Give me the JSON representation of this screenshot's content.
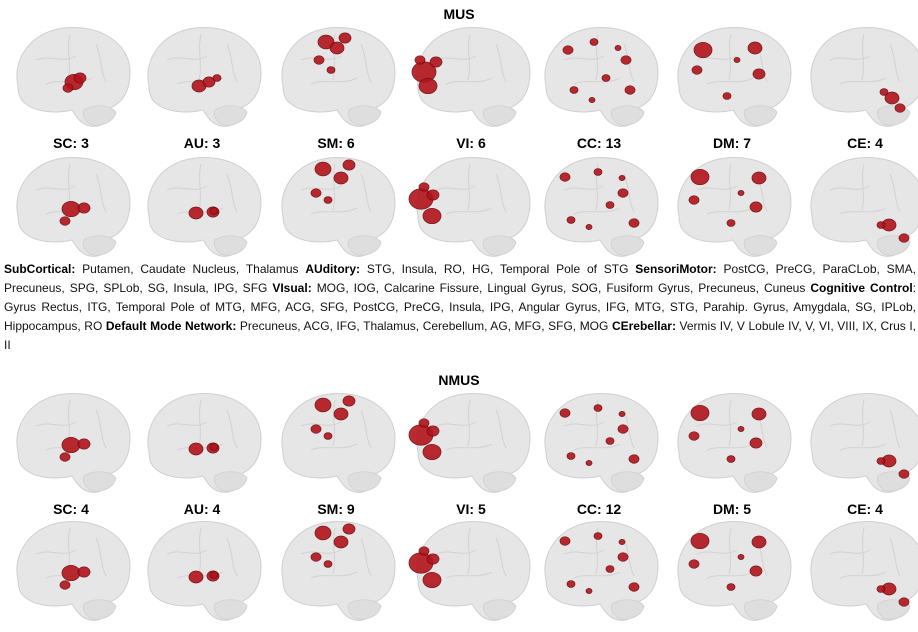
{
  "figure": {
    "sections": [
      {
        "title": "MUS",
        "labels": [
          "SC: 3",
          "AU: 3",
          "SM: 6",
          "VI: 6",
          "CC: 13",
          "DM: 7",
          "CE: 4"
        ]
      },
      {
        "title": "NMUS",
        "labels": [
          "SC: 4",
          "AU: 4",
          "SM: 9",
          "VI: 5",
          "CC: 12",
          "DM: 5",
          "CE: 4"
        ]
      }
    ],
    "caption": [
      {
        "term": "SubCortical:",
        "text": " Putamen, Caudate Nucleus, Thalamus "
      },
      {
        "term": "AUditory:",
        "text": " STG, Insula, RO, HG, Temporal Pole of STG "
      },
      {
        "term": "SensoriMotor:",
        "text": " PostCG, PreCG, ParaCLob, SMA, Precuneus, SPG, SPLob, SG, Insula, IPG, SFG "
      },
      {
        "term": "VIsual:",
        "text": " MOG, IOG, Calcarine Fissure, Lingual Gyrus, SOG, Fusiform Gyrus, Precuneus, Cuneus "
      },
      {
        "term": "Cognitive Control",
        "text": ": Gyrus Rectus, ITG, Temporal Pole of MTG, MFG, ACG, SFG, PostCG, PreCG, Insula, IPG, Angular Gyrus, IFG, MTG, STG, Parahip. Gyrus, Amygdala, SG, IPLob, Hippocampus, RO "
      },
      {
        "term": "Default Mode Network:",
        "text": " Precuneus, ACG, IFG, Thalamus, Cerebellum, AG, MFG, SFG, MOG "
      },
      {
        "term": "CErebellar:",
        "text": " Vermis IV, V Lobule IV, V, VI, VIII, IX, Crus I, II"
      }
    ]
  },
  "colors": {
    "brain_fill": "#e6e6e6",
    "brain_edge": "#cfcfcf",
    "activation": "#b3131b",
    "activation_dark": "#6e0a10"
  }
}
